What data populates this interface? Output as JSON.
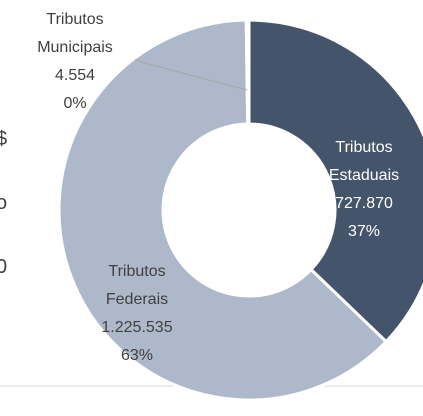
{
  "chart_data": {
    "type": "donut",
    "categories": [
      "Tributos Estaduais",
      "Tributos Federais",
      "Tributos Municipais"
    ],
    "values": [
      727870,
      1225535,
      4554
    ],
    "value_labels": [
      "727.870",
      "1.225.535",
      "4.554"
    ],
    "percents": [
      37,
      63,
      0
    ],
    "percent_labels": [
      "37%",
      "63%",
      "0%"
    ],
    "colors": [
      "#44546a",
      "#adb9ca",
      "#a5a5a5"
    ],
    "side_texts": [
      "$",
      "o",
      "0"
    ]
  }
}
